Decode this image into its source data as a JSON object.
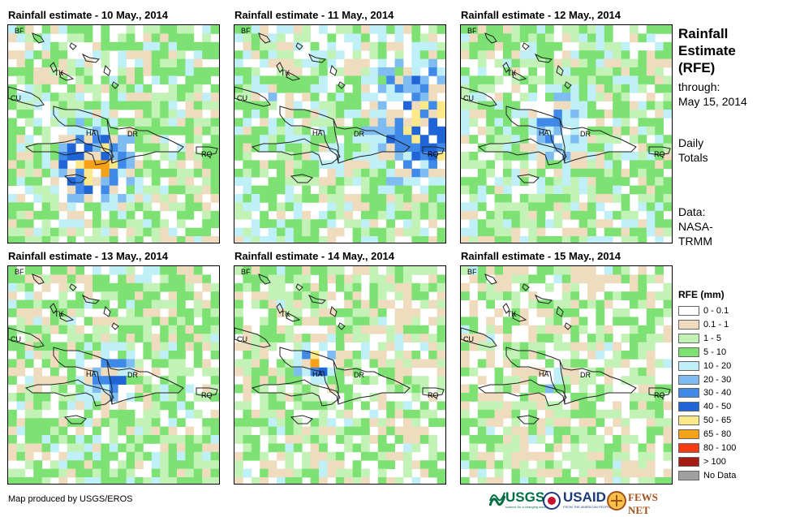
{
  "panels": [
    {
      "title": "Rainfall estimate - 10 May., 2014"
    },
    {
      "title": "Rainfall estimate - 11 May., 2014"
    },
    {
      "title": "Rainfall estimate - 12 May., 2014"
    },
    {
      "title": "Rainfall estimate - 13 May., 2014"
    },
    {
      "title": "Rainfall estimate - 14 May., 2014"
    },
    {
      "title": "Rainfall estimate - 15 May., 2014"
    }
  ],
  "map_labels": {
    "bf": "BF",
    "tk": "TK",
    "cu": "CU",
    "ha": "HA",
    "dr": "DR",
    "rq": "RQ"
  },
  "side": {
    "title_lines": [
      "Rainfall",
      "Estimate",
      "(RFE)"
    ],
    "through_label": "through:",
    "through_date": "May 15, 2014",
    "totals_lines": [
      "Daily",
      "Totals"
    ],
    "data_lines": [
      "Data:",
      "NASA-",
      "TRMM"
    ]
  },
  "legend": {
    "title": "RFE (mm)",
    "items": [
      {
        "label": "0 - 0.1",
        "color": "#ffffff"
      },
      {
        "label": "0.1 - 1",
        "color": "#efdcbe"
      },
      {
        "label": "1 - 5",
        "color": "#c3f2b7"
      },
      {
        "label": "5 - 10",
        "color": "#7de273"
      },
      {
        "label": "10 - 20",
        "color": "#bff0f7"
      },
      {
        "label": "20 - 30",
        "color": "#7fbcf2"
      },
      {
        "label": "30 - 40",
        "color": "#3f8ae8"
      },
      {
        "label": "40 - 50",
        "color": "#2065d8"
      },
      {
        "label": "50 - 65",
        "color": "#fde88a"
      },
      {
        "label": "65 - 80",
        "color": "#f5a21a"
      },
      {
        "label": "80 - 100",
        "color": "#f53b13"
      },
      {
        "label": "> 100",
        "color": "#a51c14"
      },
      {
        "label": "No Data",
        "color": "#a0a0a0"
      }
    ]
  },
  "credit": "Map produced by USGS/EROS",
  "logos": {
    "usgs": "USGS",
    "usgs_tag": "science for a changing world",
    "usaid": "USAID",
    "usaid_tag": "FROM THE AMERICAN PEOPLE",
    "fews": "FEWS NET"
  }
}
